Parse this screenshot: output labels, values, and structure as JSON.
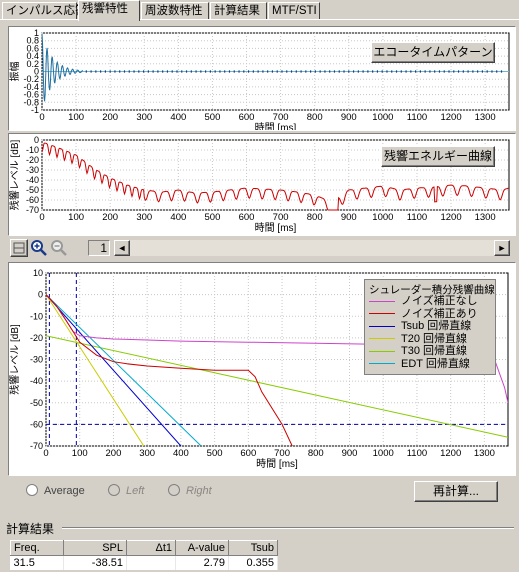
{
  "tabs": [
    {
      "label": "インパルス応答"
    },
    {
      "label": "残響特性"
    },
    {
      "label": "周波数特性"
    },
    {
      "label": "計算結果"
    },
    {
      "label": "MTF/STI"
    }
  ],
  "active_tab": 1,
  "colors": {
    "echo": "#1f6fa0",
    "energy": "#cc0000",
    "noise_off": "#cc44cc",
    "noise_on": "#cc0000",
    "tsub": "#0000cc",
    "t20": "#cccc00",
    "t30": "#88cc00",
    "edt": "#00aacc",
    "cursor": "#0000aa"
  },
  "echo_plot": {
    "button_label": "エコータイムパターン",
    "ylabel": "振幅",
    "xlabel": "時間 [ms]",
    "y_ticks": [
      "1",
      "0.8",
      "0.6",
      "0.4",
      "0.2",
      "0",
      "-0.2",
      "-0.4",
      "-0.6",
      "-0.8",
      "-1"
    ],
    "x_ticks": [
      "0",
      "100",
      "200",
      "300",
      "400",
      "500",
      "600",
      "700",
      "800",
      "900",
      "1000",
      "1100",
      "1200",
      "1300"
    ]
  },
  "energy_plot": {
    "button_label": "残響エネルギー曲線",
    "ylabel": "残響レベル [dB]",
    "xlabel": "時間 [ms]",
    "y_ticks": [
      "0",
      "-10",
      "-20",
      "-30",
      "-40",
      "-50",
      "-60",
      "-70"
    ],
    "x_ticks": [
      "0",
      "100",
      "200",
      "300",
      "400",
      "500",
      "600",
      "700",
      "800",
      "900",
      "1000",
      "1100",
      "1200",
      "1300"
    ]
  },
  "toolbar": {
    "page_value": "1",
    "left_arrow": "◄",
    "right_arrow": "►"
  },
  "decay_chart": {
    "ylabel": "残響レベル [dB]",
    "xlabel": "時間 [ms]",
    "y_ticks": [
      "10",
      "0",
      "-10",
      "-20",
      "-30",
      "-40",
      "-50",
      "-60",
      "-70"
    ],
    "x_ticks": [
      "0",
      "100",
      "200",
      "300",
      "400",
      "500",
      "600",
      "700",
      "800",
      "900",
      "1000",
      "1100",
      "1200",
      "1300"
    ],
    "legend_title": "シュレーダー積分残響曲線",
    "legend": [
      "ノイズ補正なし",
      "ノイズ補正あり",
      "Tsub 回帰直線",
      "T20 回帰直線",
      "T30 回帰直線",
      "EDT 回帰直線"
    ]
  },
  "chart_data": [
    {
      "type": "line",
      "title": "エコータイムパターン",
      "xlabel": "時間 [ms]",
      "ylabel": "振幅",
      "xlim": [
        0,
        1370
      ],
      "ylim": [
        -1,
        1
      ],
      "grid": true,
      "series": [
        {
          "x": [
            0,
            5,
            10,
            15,
            20,
            25,
            30,
            35,
            40,
            50,
            60,
            70,
            80,
            90,
            100,
            150,
            200,
            300,
            400,
            500,
            600,
            700,
            800,
            900,
            1000,
            1100,
            1200,
            1300,
            1370
          ],
          "y": [
            0,
            0.95,
            -0.9,
            0.8,
            -0.7,
            0.6,
            -0.55,
            0.4,
            -0.35,
            0.2,
            -0.15,
            0.1,
            -0.08,
            0.05,
            0.03,
            0.02,
            0.02,
            0.02,
            0.02,
            0.02,
            0.02,
            0.02,
            0.02,
            0.02,
            0.02,
            0.02,
            0.02,
            0.02,
            0.02
          ]
        }
      ]
    },
    {
      "type": "line",
      "title": "残響エネルギー曲線",
      "xlabel": "時間 [ms]",
      "ylabel": "残響レベル [dB]",
      "xlim": [
        0,
        1370
      ],
      "ylim": [
        -70,
        0
      ],
      "grid": true,
      "series": [
        {
          "x": [
            0,
            50,
            100,
            150,
            200,
            250,
            300,
            350,
            400,
            450,
            500,
            550,
            600,
            650,
            700,
            750,
            800,
            850,
            900,
            950,
            1000,
            1050,
            1100,
            1150,
            1200,
            1250,
            1300,
            1350,
            1370
          ],
          "y": [
            -2,
            -8,
            -15,
            -28,
            -38,
            -45,
            -50,
            -52,
            -50,
            -53,
            -52,
            -50,
            -48,
            -49,
            -50,
            -52,
            -55,
            -62,
            -50,
            -48,
            -46,
            -50,
            -48,
            -47,
            -45,
            -46,
            -48,
            -50,
            -48
          ]
        }
      ]
    },
    {
      "type": "line",
      "title": "シュレーダー積分残響曲線",
      "xlabel": "時間 [ms]",
      "ylabel": "残響レベル [dB]",
      "xlim": [
        0,
        1370
      ],
      "ylim": [
        -70,
        10
      ],
      "grid": true,
      "legend": "top-right",
      "series": [
        {
          "name": "ノイズ補正なし",
          "x": [
            0,
            30,
            60,
            80,
            100,
            150,
            200,
            300,
            400,
            600,
            800,
            1000,
            1200,
            1300,
            1330,
            1360,
            1370
          ],
          "y": [
            0,
            -5,
            -12,
            -17,
            -19,
            -20,
            -20.5,
            -21,
            -21.5,
            -22,
            -22.5,
            -23,
            -23,
            -23,
            -30,
            -43,
            -50
          ]
        },
        {
          "name": "ノイズ補正あり",
          "x": [
            0,
            30,
            60,
            80,
            100,
            150,
            200,
            240,
            300,
            400,
            500,
            600,
            620,
            640,
            700,
            730
          ],
          "y": [
            0,
            -5,
            -12,
            -17,
            -22,
            -28,
            -31,
            -32,
            -33,
            -34,
            -35,
            -35,
            -38,
            -45,
            -60,
            -70
          ]
        },
        {
          "name": "Tsub 回帰直線",
          "x": [
            0,
            400
          ],
          "y": [
            0,
            -70
          ]
        },
        {
          "name": "T20 回帰直線",
          "x": [
            0,
            290
          ],
          "y": [
            0,
            -70
          ]
        },
        {
          "name": "T30 回帰直線",
          "x": [
            0,
            1370
          ],
          "y": [
            -19,
            -66
          ]
        },
        {
          "name": "EDT 回帰直線",
          "x": [
            0,
            460
          ],
          "y": [
            0,
            -70
          ]
        }
      ]
    }
  ],
  "options": {
    "average": "Average",
    "left": "Left",
    "right": "Right",
    "recalc_button": "再計算..."
  },
  "results": {
    "title": "計算結果",
    "columns": [
      "Freq.",
      "SPL",
      "Δt1",
      "A-value",
      "Tsub"
    ],
    "rows": [
      [
        "31.5",
        "-38.51",
        "",
        "2.79",
        "0.355"
      ]
    ]
  }
}
